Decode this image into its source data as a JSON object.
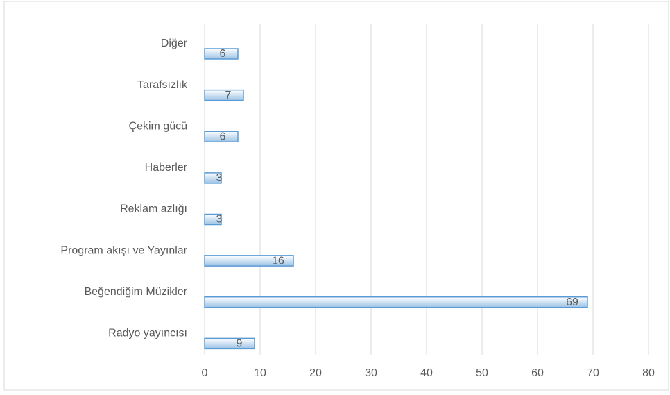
{
  "chart_data": {
    "type": "barh",
    "categories": [
      "Diğer",
      "Tarafsızlık",
      "Çekim gücü",
      "Haberler",
      "Reklam azlığı",
      "Program akışı ve Yayınlar",
      "Beğendiğim Müzikler",
      "Radyo yayıncısı"
    ],
    "values": [
      6,
      7,
      6,
      3,
      3,
      16,
      69,
      9
    ],
    "color": "#bdd7ee",
    "xlim": [
      0,
      80
    ],
    "xticks": [
      0,
      10,
      20,
      30,
      40,
      50,
      60,
      70,
      80
    ],
    "grid": true
  }
}
